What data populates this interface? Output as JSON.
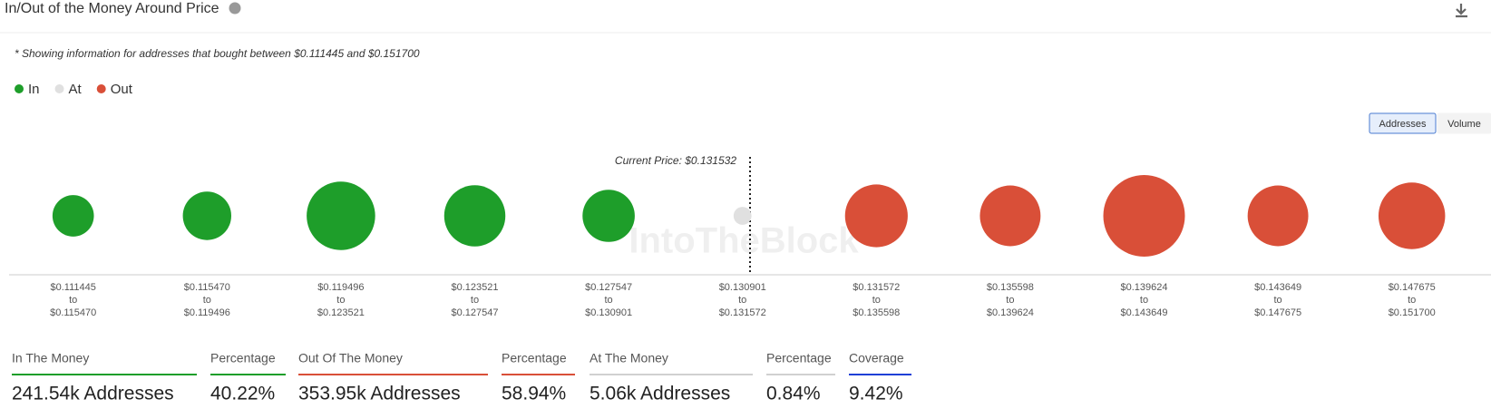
{
  "header": {
    "title": "In/Out of the Money Around Price"
  },
  "chart_data": {
    "type": "bubble",
    "note": "* Showing information for addresses that bought between $0.111445 and $0.151700",
    "watermark": "IntoTheBlock",
    "annotation": "Current Price: $0.131532",
    "range_word": "to",
    "toggle": [
      "Addresses",
      "Volume"
    ],
    "categories": [
      {
        "from": "$0.111445",
        "to": "$0.115470"
      },
      {
        "from": "$0.115470",
        "to": "$0.119496"
      },
      {
        "from": "$0.119496",
        "to": "$0.123521"
      },
      {
        "from": "$0.123521",
        "to": "$0.127547"
      },
      {
        "from": "$0.127547",
        "to": "$0.130901"
      },
      {
        "from": "$0.130901",
        "to": "$0.131572"
      },
      {
        "from": "$0.131572",
        "to": "$0.135598"
      },
      {
        "from": "$0.135598",
        "to": "$0.139624"
      },
      {
        "from": "$0.139624",
        "to": "$0.143649"
      },
      {
        "from": "$0.143649",
        "to": "$0.147675"
      },
      {
        "from": "$0.147675",
        "to": "$0.151700"
      }
    ],
    "series": [
      {
        "name": "In",
        "color": "#1e9e2a",
        "values": [
          27000,
          37000,
          74000,
          59000,
          43000,
          null,
          null,
          null,
          null,
          null,
          null
        ]
      },
      {
        "name": "At",
        "color": "#e0e0e0",
        "values": [
          null,
          null,
          null,
          null,
          null,
          5060,
          null,
          null,
          null,
          null,
          null
        ]
      },
      {
        "name": "Out",
        "color": "#d94f38",
        "values": [
          null,
          null,
          null,
          null,
          null,
          null,
          62000,
          58000,
          105000,
          58000,
          70000
        ]
      }
    ]
  },
  "summary": [
    {
      "label": "In The Money",
      "value": "241.54k Addresses",
      "color": "#1e9e2a"
    },
    {
      "label": "Percentage",
      "value": "40.22%",
      "color": "#1e9e2a"
    },
    {
      "label": "Out Of The Money",
      "value": "353.95k Addresses",
      "color": "#d94f38"
    },
    {
      "label": "Percentage",
      "value": "58.94%",
      "color": "#d94f38"
    },
    {
      "label": "At The Money",
      "value": "5.06k Addresses",
      "color": "#d0d0d0"
    },
    {
      "label": "Percentage",
      "value": "0.84%",
      "color": "#d0d0d0"
    },
    {
      "label": "Coverage",
      "value": "9.42%",
      "color": "#1f3fd6"
    }
  ]
}
